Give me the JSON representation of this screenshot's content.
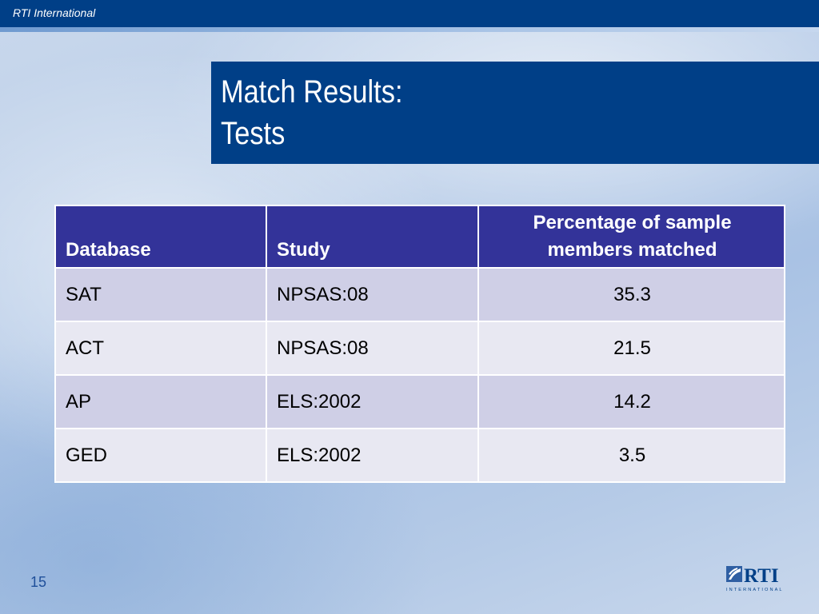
{
  "header": {
    "org_name": "RTI International"
  },
  "title": {
    "line1": "Match Results:",
    "line2": "Tests"
  },
  "table": {
    "columns": [
      "Database",
      "Study",
      "Percentage of sample members matched"
    ],
    "rows": [
      [
        "SAT",
        "NPSAS:08",
        "35.3"
      ],
      [
        "ACT",
        "NPSAS:08",
        "21.5"
      ],
      [
        "AP",
        "ELS:2002",
        "14.2"
      ],
      [
        "GED",
        "ELS:2002",
        "3.5"
      ]
    ]
  },
  "footer": {
    "page_number": "15",
    "logo": {
      "text": "RTI",
      "subtext": "INTERNATIONAL",
      "color": "#003f87"
    }
  },
  "colors": {
    "header_bar": "#003f87",
    "table_header": "#333399",
    "row_odd": "#cfcfe6",
    "row_even": "#e8e8f2"
  }
}
